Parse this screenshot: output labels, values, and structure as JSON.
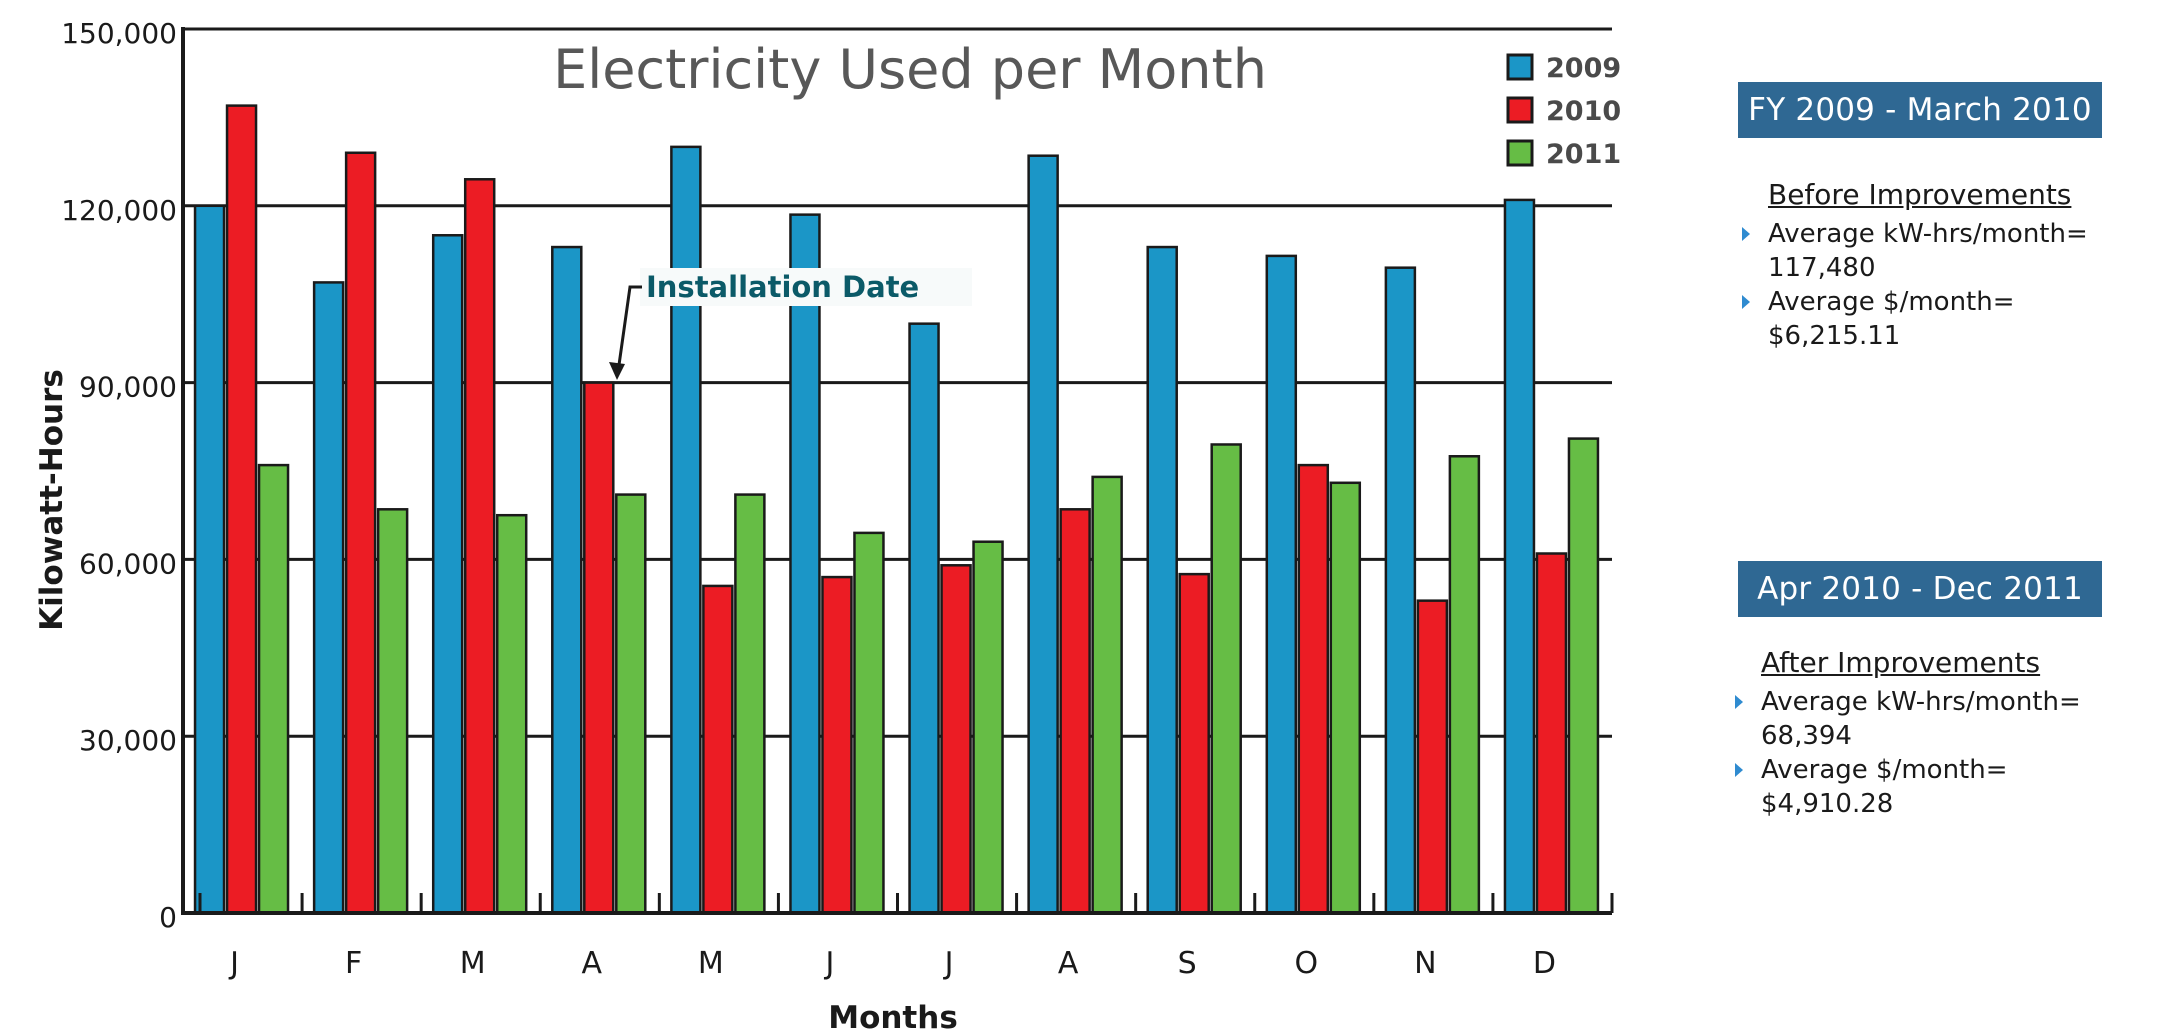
{
  "chart_data": {
    "type": "bar",
    "title": "Electricity Used per Month",
    "xlabel": "Months",
    "ylabel": "Kilowatt-Hours",
    "ylim": [
      0,
      150000
    ],
    "yticks": [
      0,
      30000,
      60000,
      90000,
      120000,
      150000
    ],
    "ytick_labels": [
      "0",
      "30,000",
      "60,000",
      "90,000",
      "120,000",
      "150,000"
    ],
    "categories": [
      "J",
      "F",
      "M",
      "A",
      "M",
      "J",
      "J",
      "A",
      "S",
      "O",
      "N",
      "D"
    ],
    "series": [
      {
        "name": "2009",
        "color": "#1b96c7",
        "values": [
          120000,
          107000,
          115000,
          113000,
          130000,
          118500,
          100000,
          128500,
          113000,
          111500,
          109500,
          121000
        ]
      },
      {
        "name": "2010",
        "color": "#ec1c24",
        "values": [
          137000,
          129000,
          124500,
          90000,
          55500,
          57000,
          59000,
          68500,
          57500,
          76000,
          53000,
          61000
        ]
      },
      {
        "name": "2011",
        "color": "#66bd45",
        "values": [
          76000,
          68500,
          67500,
          71000,
          71000,
          64500,
          63000,
          74000,
          79500,
          73000,
          77500,
          80500
        ]
      }
    ],
    "grid": true,
    "legend": "top-right",
    "annotation": {
      "text": "Installation Date",
      "category_index": 3,
      "series": "2010",
      "value": 90000,
      "color": "#0b5a68"
    }
  },
  "panels": {
    "before": {
      "header": "FY 2009 - March 2010",
      "header_color": "#2f6893",
      "heading": "Before Improvements",
      "kwh_label": "Average kW-hrs/month=",
      "kwh_value": "117,480",
      "cost_label": "Average $/month=",
      "cost_value": "$6,215.11"
    },
    "after": {
      "header": "Apr 2010 - Dec 2011",
      "header_color": "#2f6893",
      "heading": "After Improvements",
      "kwh_label": "Average kW-hrs/month=",
      "kwh_value": "68,394",
      "cost_label": "Average $/month=",
      "cost_value": "$4,910.28"
    }
  }
}
